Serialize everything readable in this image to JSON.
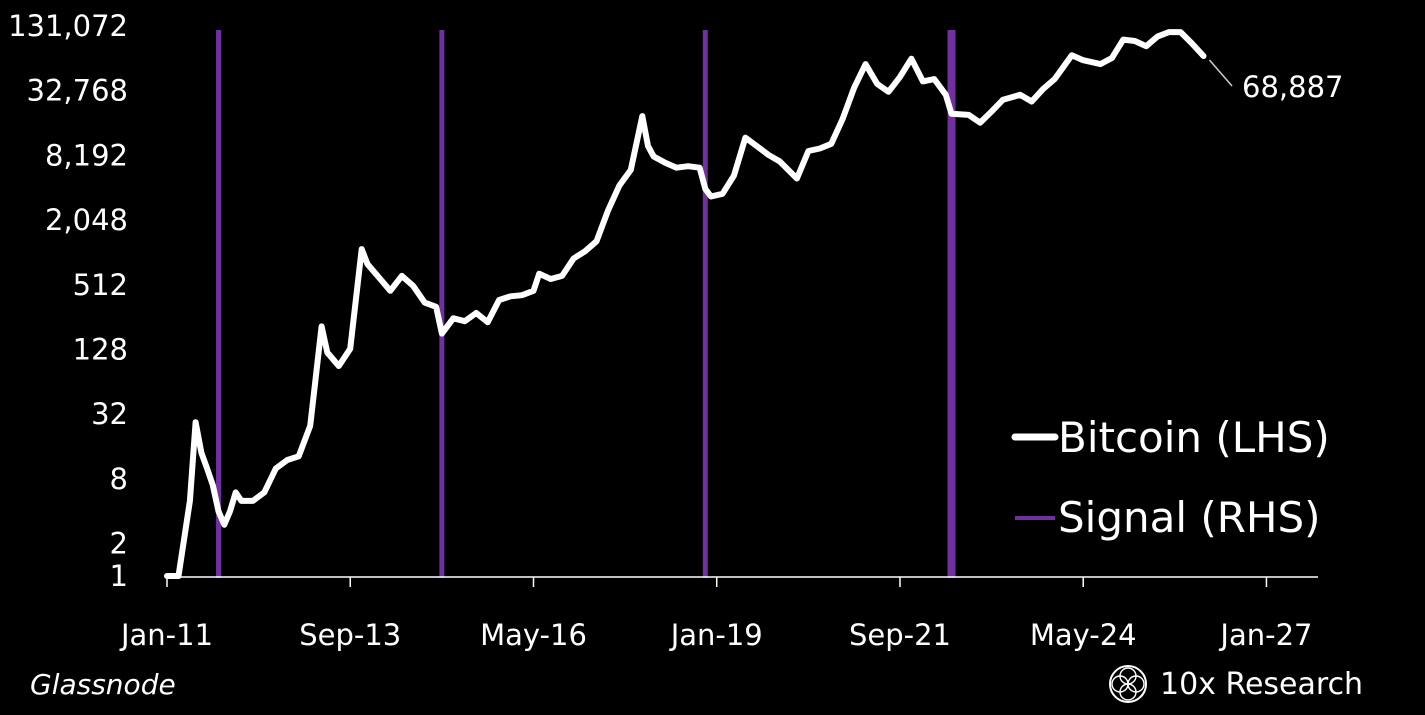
{
  "chart_data": {
    "type": "line",
    "scale": "log2",
    "y_ticks": [
      {
        "value": 1,
        "label": "1"
      },
      {
        "value": 2,
        "label": "2"
      },
      {
        "value": 8,
        "label": "8"
      },
      {
        "value": 32,
        "label": "32"
      },
      {
        "value": 128,
        "label": "128"
      },
      {
        "value": 512,
        "label": "512"
      },
      {
        "value": 2048,
        "label": "2,048"
      },
      {
        "value": 8192,
        "label": "8,192"
      },
      {
        "value": 32768,
        "label": "32,768"
      },
      {
        "value": 131072,
        "label": "131,072"
      }
    ],
    "x_ticks": [
      "Jan-11",
      "Sep-13",
      "May-16",
      "Jan-19",
      "Sep-21",
      "May-24",
      "Jan-27"
    ],
    "xlim": [
      "2011-01",
      "2027-10"
    ],
    "ylim": [
      1,
      131072
    ],
    "grid": false,
    "legend_position": "bottom-right",
    "series": [
      {
        "name": "Bitcoin (LHS)",
        "color": "#ffffff",
        "points": [
          [
            "2011-01",
            1.0
          ],
          [
            "2011-03",
            1.0
          ],
          [
            "2011-05",
            5
          ],
          [
            "2011-06",
            27
          ],
          [
            "2011-07",
            14
          ],
          [
            "2011-08",
            10
          ],
          [
            "2011-09",
            7
          ],
          [
            "2011-10",
            4
          ],
          [
            "2011-11",
            3
          ],
          [
            "2011-12",
            4
          ],
          [
            "2012-01",
            6
          ],
          [
            "2012-02",
            5
          ],
          [
            "2012-04",
            5
          ],
          [
            "2012-06",
            6
          ],
          [
            "2012-08",
            10
          ],
          [
            "2012-10",
            12
          ],
          [
            "2012-12",
            13
          ],
          [
            "2013-02",
            25
          ],
          [
            "2013-04",
            210
          ],
          [
            "2013-05",
            120
          ],
          [
            "2013-07",
            90
          ],
          [
            "2013-09",
            130
          ],
          [
            "2013-11",
            1100
          ],
          [
            "2013-12",
            800
          ],
          [
            "2014-02",
            600
          ],
          [
            "2014-04",
            450
          ],
          [
            "2014-06",
            620
          ],
          [
            "2014-08",
            500
          ],
          [
            "2014-10",
            350
          ],
          [
            "2014-12",
            320
          ],
          [
            "2015-01",
            180
          ],
          [
            "2015-03",
            250
          ],
          [
            "2015-05",
            235
          ],
          [
            "2015-07",
            280
          ],
          [
            "2015-09",
            230
          ],
          [
            "2015-11",
            370
          ],
          [
            "2016-01",
            400
          ],
          [
            "2016-03",
            410
          ],
          [
            "2016-05",
            450
          ],
          [
            "2016-06",
            650
          ],
          [
            "2016-08",
            580
          ],
          [
            "2016-10",
            620
          ],
          [
            "2016-12",
            900
          ],
          [
            "2017-02",
            1050
          ],
          [
            "2017-04",
            1300
          ],
          [
            "2017-06",
            2500
          ],
          [
            "2017-08",
            4300
          ],
          [
            "2017-10",
            6000
          ],
          [
            "2017-12",
            19000
          ],
          [
            "2018-01",
            10000
          ],
          [
            "2018-02",
            8000
          ],
          [
            "2018-04",
            7000
          ],
          [
            "2018-06",
            6300
          ],
          [
            "2018-08",
            6500
          ],
          [
            "2018-10",
            6300
          ],
          [
            "2018-11",
            4000
          ],
          [
            "2018-12",
            3400
          ],
          [
            "2019-02",
            3600
          ],
          [
            "2019-04",
            5300
          ],
          [
            "2019-06",
            12000
          ],
          [
            "2019-08",
            10000
          ],
          [
            "2019-10",
            8300
          ],
          [
            "2019-12",
            7200
          ],
          [
            "2020-03",
            5000
          ],
          [
            "2020-05",
            9000
          ],
          [
            "2020-07",
            9500
          ],
          [
            "2020-09",
            10500
          ],
          [
            "2020-11",
            18000
          ],
          [
            "2021-01",
            35000
          ],
          [
            "2021-03",
            58000
          ],
          [
            "2021-05",
            38000
          ],
          [
            "2021-07",
            32000
          ],
          [
            "2021-09",
            44000
          ],
          [
            "2021-11",
            65000
          ],
          [
            "2022-01",
            40000
          ],
          [
            "2022-03",
            42000
          ],
          [
            "2022-05",
            30000
          ],
          [
            "2022-06",
            20000
          ],
          [
            "2022-09",
            19500
          ],
          [
            "2022-11",
            16500
          ],
          [
            "2023-01",
            21000
          ],
          [
            "2023-03",
            27000
          ],
          [
            "2023-06",
            30000
          ],
          [
            "2023-08",
            26000
          ],
          [
            "2023-10",
            34000
          ],
          [
            "2023-12",
            42000
          ],
          [
            "2024-03",
            70000
          ],
          [
            "2024-05",
            63000
          ],
          [
            "2024-08",
            58000
          ],
          [
            "2024-10",
            66000
          ],
          [
            "2024-12",
            98000
          ],
          [
            "2025-02",
            95000
          ],
          [
            "2025-04",
            85000
          ],
          [
            "2025-06",
            105000
          ],
          [
            "2025-08",
            115000
          ],
          [
            "2025-10",
            115000
          ],
          [
            "2025-12",
            90000
          ],
          [
            "2026-02",
            68887
          ]
        ],
        "last_value_label": "68,887"
      },
      {
        "name": "Signal (RHS)",
        "color": "#7030a0",
        "signal_dates": [
          "2011-10",
          "2015-01",
          "2018-11",
          "2022-06"
        ]
      }
    ]
  },
  "source": "Glassnode",
  "brand": "10x Research"
}
